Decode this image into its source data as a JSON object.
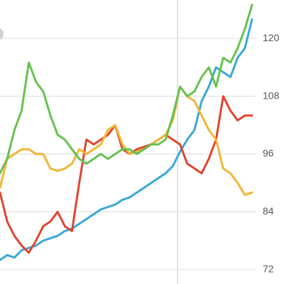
{
  "chart_data": {
    "type": "line",
    "categories": [
      null,
      null,
      null,
      null,
      null,
      null,
      null,
      null,
      null,
      null,
      null,
      null,
      null,
      null,
      null,
      null,
      null,
      null,
      null,
      null,
      null,
      null,
      null,
      null,
      null,
      null,
      null,
      null,
      null,
      null,
      null,
      null,
      null,
      null,
      null,
      null
    ],
    "series": [
      {
        "color": "#3aa8d8",
        "values": [
          74,
          75,
          74.5,
          76,
          76.5,
          77,
          78,
          78.5,
          79,
          80,
          80.5,
          81.5,
          82.5,
          83.5,
          84.5,
          85,
          85.5,
          86.5,
          87,
          88,
          89,
          90,
          91,
          92,
          93.5,
          96.5,
          99,
          101,
          107,
          110,
          114,
          113,
          112,
          116,
          118,
          124
        ]
      },
      {
        "color": "#e0452f",
        "values": [
          88,
          82,
          79,
          77,
          75.5,
          78,
          81,
          82,
          84,
          81,
          80,
          90,
          99,
          98,
          99,
          100,
          102,
          97,
          96,
          97,
          97.5,
          98,
          99,
          100,
          99,
          98,
          94,
          93,
          92,
          95,
          99,
          108,
          105,
          103,
          104,
          104
        ]
      },
      {
        "color": "#f2b535",
        "values": [
          89,
          95,
          96,
          97,
          97,
          96,
          96,
          93,
          92.5,
          93,
          94,
          97,
          96,
          97,
          98,
          101,
          102,
          98,
          96,
          96.5,
          97,
          98,
          99,
          100,
          103,
          110,
          108,
          107,
          104,
          101,
          99,
          93,
          92,
          90,
          87.5,
          88
        ]
      },
      {
        "color": "#66c24f",
        "values": [
          92,
          95,
          101,
          105,
          115,
          111,
          109,
          104,
          100,
          99,
          97,
          95,
          94,
          95,
          96,
          95,
          96,
          97,
          97,
          96,
          97,
          98,
          98,
          99,
          104,
          110,
          108,
          109,
          112,
          114,
          110,
          116,
          115,
          118,
          122,
          127
        ]
      }
    ],
    "ylim": [
      69,
      128
    ],
    "yticks": [
      72,
      84,
      96,
      108,
      120
    ],
    "grid": true
  }
}
